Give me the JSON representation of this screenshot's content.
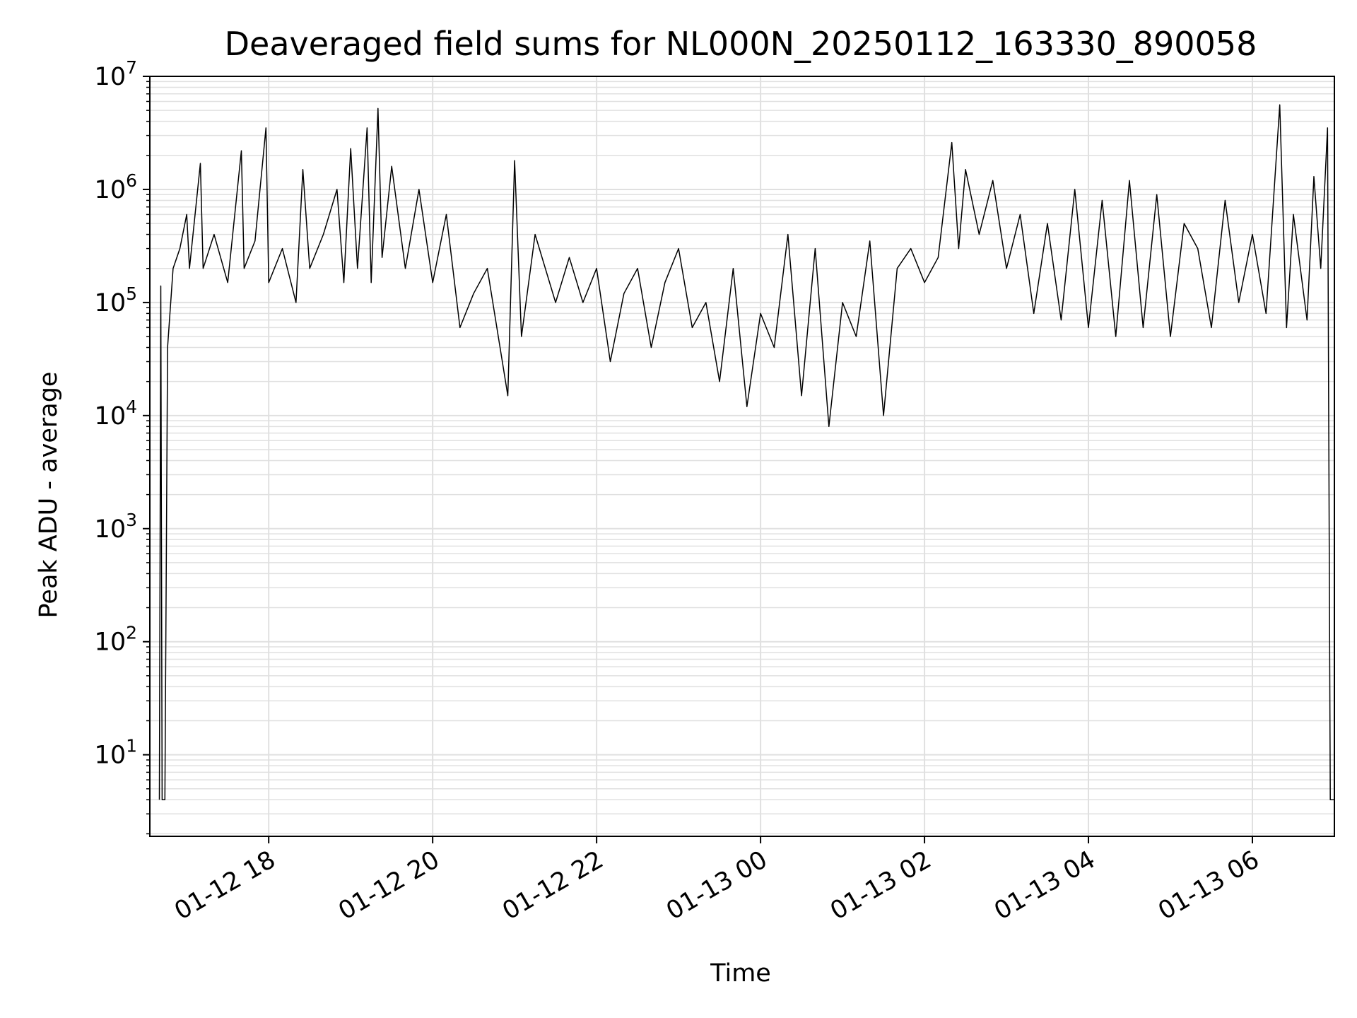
{
  "chart_data": {
    "type": "line",
    "title": "Deaveraged field sums for NL000N_20250112_163330_890058",
    "xlabel": "Time",
    "ylabel": "Peak ADU - average",
    "yscale": "log",
    "ylim": [
      1.9,
      10000000
    ],
    "xlim": [
      "2025-01-12 16:33",
      "2025-01-13 07:00"
    ],
    "grid": true,
    "line_color": "#000000",
    "grid_color": "#e0e0e0",
    "x_ticks": [
      {
        "value": "2025-01-12 18:00",
        "label": "01-12 18"
      },
      {
        "value": "2025-01-12 20:00",
        "label": "01-12 20"
      },
      {
        "value": "2025-01-12 22:00",
        "label": "01-12 22"
      },
      {
        "value": "2025-01-13 00:00",
        "label": "01-13 00"
      },
      {
        "value": "2025-01-13 02:00",
        "label": "01-13 02"
      },
      {
        "value": "2025-01-13 04:00",
        "label": "01-13 04"
      },
      {
        "value": "2025-01-13 06:00",
        "label": "01-13 06"
      }
    ],
    "y_ticks": [
      {
        "value": 10,
        "base": "10",
        "exp": "1"
      },
      {
        "value": 100,
        "base": "10",
        "exp": "2"
      },
      {
        "value": 1000,
        "base": "10",
        "exp": "3"
      },
      {
        "value": 10000,
        "base": "10",
        "exp": "4"
      },
      {
        "value": 100000,
        "base": "10",
        "exp": "5"
      },
      {
        "value": 1000000,
        "base": "10",
        "exp": "6"
      },
      {
        "value": 10000000,
        "base": "10",
        "exp": "7"
      }
    ],
    "series": [
      {
        "points": [
          [
            "2025-01-12 16:40",
            4
          ],
          [
            "2025-01-12 16:41",
            140000
          ],
          [
            "2025-01-12 16:42",
            4
          ],
          [
            "2025-01-12 16:44",
            4
          ],
          [
            "2025-01-12 16:46",
            40000
          ],
          [
            "2025-01-12 16:50",
            200000
          ],
          [
            "2025-01-12 16:55",
            300000
          ],
          [
            "2025-01-12 17:00",
            600000
          ],
          [
            "2025-01-12 17:02",
            200000
          ],
          [
            "2025-01-12 17:10",
            1700000
          ],
          [
            "2025-01-12 17:12",
            200000
          ],
          [
            "2025-01-12 17:20",
            400000
          ],
          [
            "2025-01-12 17:30",
            150000
          ],
          [
            "2025-01-12 17:40",
            2200000
          ],
          [
            "2025-01-12 17:42",
            200000
          ],
          [
            "2025-01-12 17:50",
            350000
          ],
          [
            "2025-01-12 17:58",
            3500000
          ],
          [
            "2025-01-12 18:00",
            150000
          ],
          [
            "2025-01-12 18:10",
            300000
          ],
          [
            "2025-01-12 18:20",
            100000
          ],
          [
            "2025-01-12 18:25",
            1500000
          ],
          [
            "2025-01-12 18:30",
            200000
          ],
          [
            "2025-01-12 18:40",
            400000
          ],
          [
            "2025-01-12 18:50",
            1000000
          ],
          [
            "2025-01-12 18:55",
            150000
          ],
          [
            "2025-01-12 19:00",
            2300000
          ],
          [
            "2025-01-12 19:05",
            200000
          ],
          [
            "2025-01-12 19:12",
            3500000
          ],
          [
            "2025-01-12 19:15",
            150000
          ],
          [
            "2025-01-12 19:20",
            5200000
          ],
          [
            "2025-01-12 19:23",
            250000
          ],
          [
            "2025-01-12 19:30",
            1600000
          ],
          [
            "2025-01-12 19:40",
            200000
          ],
          [
            "2025-01-12 19:50",
            1000000
          ],
          [
            "2025-01-12 20:00",
            150000
          ],
          [
            "2025-01-12 20:10",
            600000
          ],
          [
            "2025-01-12 20:20",
            60000
          ],
          [
            "2025-01-12 20:30",
            120000
          ],
          [
            "2025-01-12 20:40",
            200000
          ],
          [
            "2025-01-12 20:55",
            15000
          ],
          [
            "2025-01-12 21:00",
            1800000
          ],
          [
            "2025-01-12 21:05",
            50000
          ],
          [
            "2025-01-12 21:15",
            400000
          ],
          [
            "2025-01-12 21:30",
            100000
          ],
          [
            "2025-01-12 21:40",
            250000
          ],
          [
            "2025-01-12 21:50",
            100000
          ],
          [
            "2025-01-12 22:00",
            200000
          ],
          [
            "2025-01-12 22:10",
            30000
          ],
          [
            "2025-01-12 22:20",
            120000
          ],
          [
            "2025-01-12 22:30",
            200000
          ],
          [
            "2025-01-12 22:40",
            40000
          ],
          [
            "2025-01-12 22:50",
            150000
          ],
          [
            "2025-01-12 23:00",
            300000
          ],
          [
            "2025-01-12 23:10",
            60000
          ],
          [
            "2025-01-12 23:20",
            100000
          ],
          [
            "2025-01-12 23:30",
            20000
          ],
          [
            "2025-01-12 23:40",
            200000
          ],
          [
            "2025-01-12 23:50",
            12000
          ],
          [
            "2025-01-13 00:00",
            80000
          ],
          [
            "2025-01-13 00:10",
            40000
          ],
          [
            "2025-01-13 00:20",
            400000
          ],
          [
            "2025-01-13 00:30",
            15000
          ],
          [
            "2025-01-13 00:40",
            300000
          ],
          [
            "2025-01-13 00:50",
            8000
          ],
          [
            "2025-01-13 01:00",
            100000
          ],
          [
            "2025-01-13 01:10",
            50000
          ],
          [
            "2025-01-13 01:20",
            350000
          ],
          [
            "2025-01-13 01:30",
            10000
          ],
          [
            "2025-01-13 01:40",
            200000
          ],
          [
            "2025-01-13 01:50",
            300000
          ],
          [
            "2025-01-13 02:00",
            150000
          ],
          [
            "2025-01-13 02:10",
            250000
          ],
          [
            "2025-01-13 02:20",
            2600000
          ],
          [
            "2025-01-13 02:25",
            300000
          ],
          [
            "2025-01-13 02:30",
            1500000
          ],
          [
            "2025-01-13 02:40",
            400000
          ],
          [
            "2025-01-13 02:50",
            1200000
          ],
          [
            "2025-01-13 03:00",
            200000
          ],
          [
            "2025-01-13 03:10",
            600000
          ],
          [
            "2025-01-13 03:20",
            80000
          ],
          [
            "2025-01-13 03:30",
            500000
          ],
          [
            "2025-01-13 03:40",
            70000
          ],
          [
            "2025-01-13 03:50",
            1000000
          ],
          [
            "2025-01-13 04:00",
            60000
          ],
          [
            "2025-01-13 04:10",
            800000
          ],
          [
            "2025-01-13 04:20",
            50000
          ],
          [
            "2025-01-13 04:30",
            1200000
          ],
          [
            "2025-01-13 04:40",
            60000
          ],
          [
            "2025-01-13 04:50",
            900000
          ],
          [
            "2025-01-13 05:00",
            50000
          ],
          [
            "2025-01-13 05:10",
            500000
          ],
          [
            "2025-01-13 05:20",
            300000
          ],
          [
            "2025-01-13 05:30",
            60000
          ],
          [
            "2025-01-13 05:40",
            800000
          ],
          [
            "2025-01-13 05:50",
            100000
          ],
          [
            "2025-01-13 06:00",
            400000
          ],
          [
            "2025-01-13 06:10",
            80000
          ],
          [
            "2025-01-13 06:20",
            5600000
          ],
          [
            "2025-01-13 06:25",
            60000
          ],
          [
            "2025-01-13 06:30",
            600000
          ],
          [
            "2025-01-13 06:40",
            70000
          ],
          [
            "2025-01-13 06:45",
            1300000
          ],
          [
            "2025-01-13 06:50",
            200000
          ],
          [
            "2025-01-13 06:55",
            3500000
          ],
          [
            "2025-01-13 06:57",
            4
          ],
          [
            "2025-01-13 07:00",
            4
          ]
        ]
      }
    ]
  }
}
